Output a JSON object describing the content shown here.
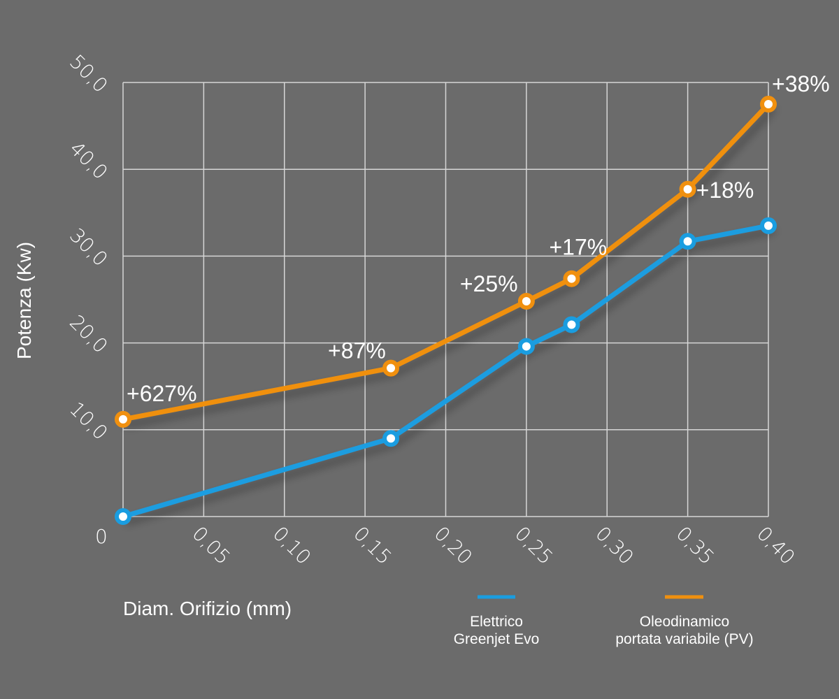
{
  "chart_data": {
    "type": "line",
    "xlabel": "Diam. Orifizio (mm)",
    "ylabel": "Potenza (Kw)",
    "xlim": [
      0,
      0.4
    ],
    "ylim": [
      0,
      50
    ],
    "x_ticks": [
      "0,05",
      "0,10",
      "0,15",
      "0,20",
      "0,25",
      "0,30",
      "0,35",
      "0,40"
    ],
    "x_tick_values": [
      0.05,
      0.1,
      0.15,
      0.2,
      0.25,
      0.3,
      0.35,
      0.4
    ],
    "y_ticks": [
      "10,0",
      "20,0",
      "30,0",
      "40,0",
      "50,0"
    ],
    "y_tick_values": [
      10,
      20,
      30,
      40,
      50
    ],
    "origin_label": "0",
    "grid": true,
    "legend_position": "bottom-right",
    "series": [
      {
        "name": "Elettrico Greenjet Evo",
        "legend_lines": [
          "Elettrico",
          "Greenjet Evo"
        ],
        "color": "#1a9de0",
        "x": [
          0.0,
          0.166,
          0.25,
          0.278,
          0.35,
          0.4
        ],
        "values": [
          0.0,
          9.0,
          19.6,
          22.1,
          31.7,
          33.5
        ]
      },
      {
        "name": "Oleodinamico portata variabile (PV)",
        "legend_lines": [
          "Oleodinamico",
          "portata variabile (PV)"
        ],
        "color": "#f0900f",
        "x": [
          0.0,
          0.166,
          0.25,
          0.278,
          0.35,
          0.4
        ],
        "values": [
          11.2,
          17.1,
          24.8,
          27.4,
          37.7,
          47.5
        ],
        "labels": [
          "+627%",
          "+87%",
          "+25%",
          "+17%",
          "+18%",
          "+38%"
        ]
      }
    ]
  }
}
